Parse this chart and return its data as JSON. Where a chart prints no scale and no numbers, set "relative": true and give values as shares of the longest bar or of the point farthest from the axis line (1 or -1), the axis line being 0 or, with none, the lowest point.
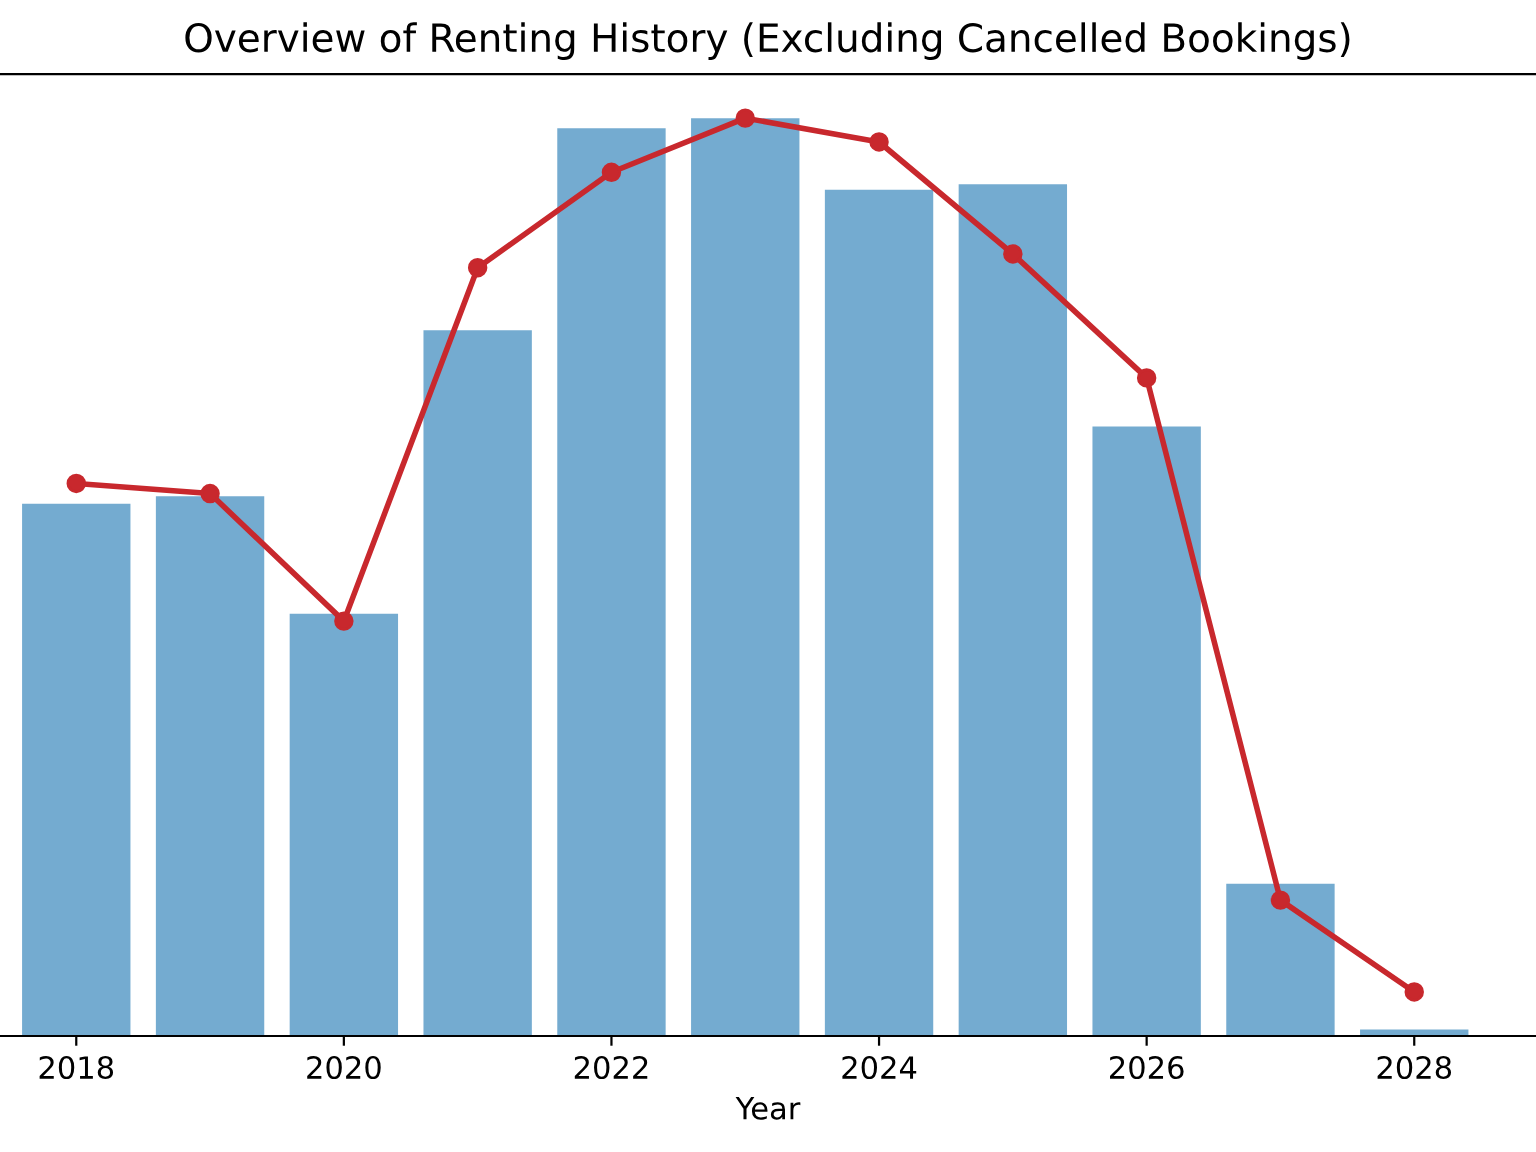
{
  "chart_data": {
    "type": "bar",
    "title": "Overview of Renting History (Excluding Cancelled Bookings)",
    "xlabel": "Year",
    "relative": true,
    "x": [
      2018,
      2019,
      2020,
      2021,
      2022,
      2023,
      2024,
      2025,
      2026,
      2027,
      2028
    ],
    "xlim": [
      2017.43,
      2028.91
    ],
    "xticks": [
      2018,
      2020,
      2022,
      2024,
      2026,
      2028
    ],
    "series": [
      {
        "color": "#74abd0",
        "values": [
          0.58,
          0.588,
          0.46,
          0.769,
          0.989,
          1,
          0.922,
          0.928,
          0.664,
          0.166,
          0.007
        ]
      },
      {
        "type": "line",
        "color": "#c8282d",
        "marker": "circle",
        "values": [
          0.602,
          0.591,
          0.452,
          0.837,
          0.941,
          1,
          0.974,
          0.852,
          0.717,
          0.148,
          0.048
        ]
      }
    ],
    "grid": false,
    "legend": false
  }
}
